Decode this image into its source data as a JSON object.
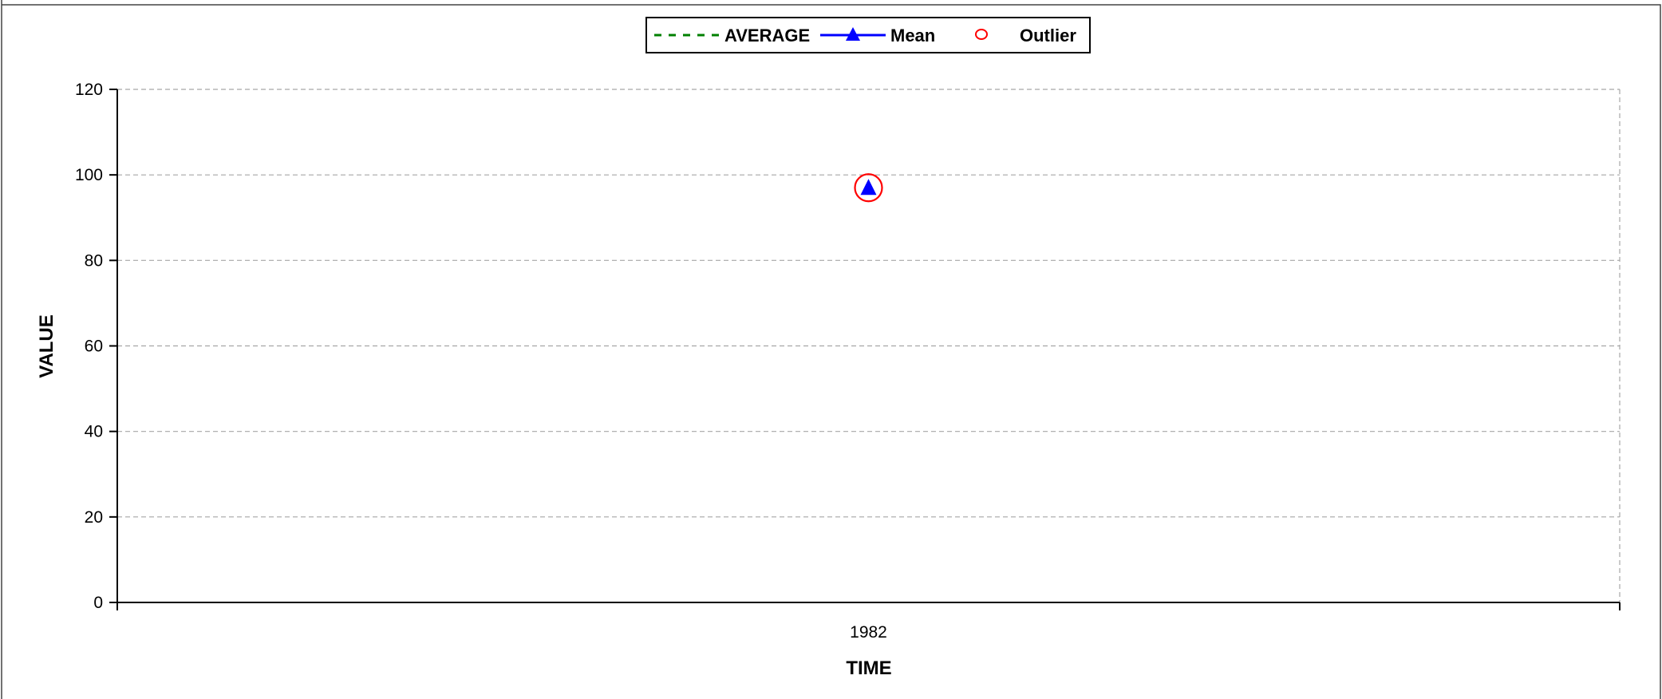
{
  "chart_data": {
    "type": "line",
    "title": "",
    "xlabel": "TIME",
    "ylabel": "VALUE",
    "x_categories": [
      "1982"
    ],
    "ylim": [
      0,
      120
    ],
    "y_ticks": [
      0,
      20,
      40,
      60,
      80,
      100,
      120
    ],
    "grid": true,
    "legend_position": "top-center",
    "series": [
      {
        "name": "AVERAGE",
        "style": "dashed-line",
        "color": "#008000",
        "points": []
      },
      {
        "name": "Mean",
        "style": "line-triangle-marker",
        "color": "#0000ff",
        "points": [
          {
            "x": "1982",
            "y": 97
          }
        ]
      },
      {
        "name": "Outlier",
        "style": "circle-marker",
        "color": "#ff0000",
        "points": [
          {
            "x": "1982",
            "y": 97
          }
        ]
      }
    ]
  }
}
